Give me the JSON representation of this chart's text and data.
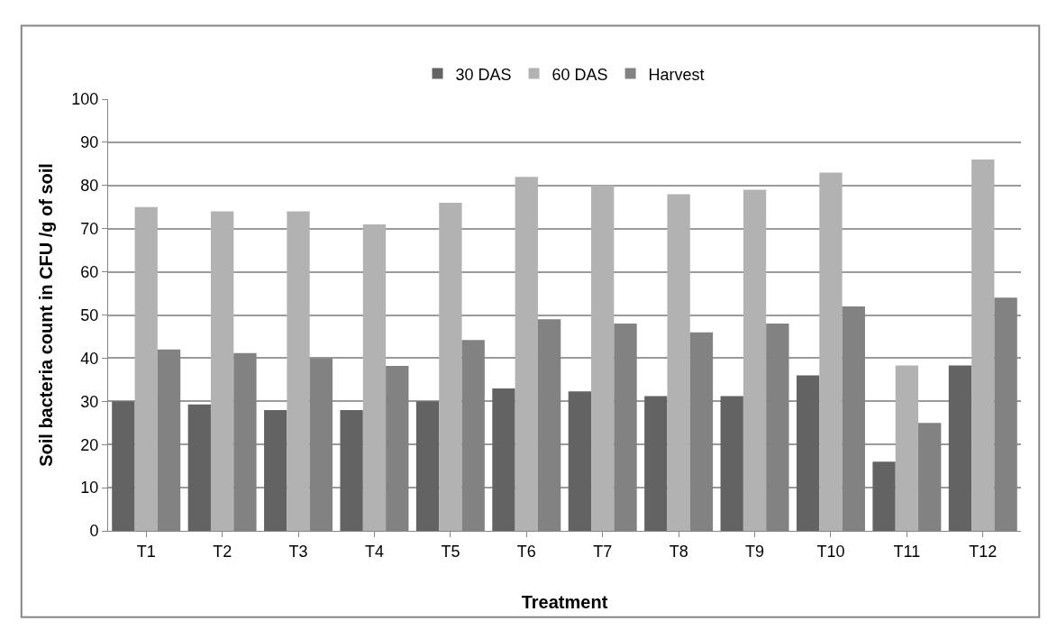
{
  "chart_data": {
    "type": "bar",
    "xlabel": "Treatment",
    "ylabel": "Soil bacteria count in CFU /g of soil",
    "categories": [
      "T1",
      "T2",
      "T3",
      "T4",
      "T5",
      "T6",
      "T7",
      "T8",
      "T9",
      "T10",
      "T11",
      "T12"
    ],
    "series": [
      {
        "name": "30 DAS",
        "color": "#636363",
        "values": [
          30,
          29.3,
          28,
          28,
          30,
          33,
          32.3,
          31.2,
          31.2,
          36,
          16,
          38.3
        ]
      },
      {
        "name": "60 DAS",
        "color": "#b2b2b2",
        "values": [
          75,
          74,
          74,
          71,
          76,
          82,
          80,
          78,
          79,
          83,
          38.3,
          86
        ]
      },
      {
        "name": "Harvest",
        "color": "#828282",
        "values": [
          42,
          41.2,
          40,
          38.2,
          44.2,
          49,
          48,
          46,
          48,
          52,
          25,
          54
        ]
      }
    ],
    "ylim": [
      0,
      100
    ],
    "yticks": [
      0,
      10,
      20,
      30,
      40,
      50,
      60,
      70,
      80,
      90,
      100
    ],
    "grid": "y",
    "legend": "top"
  }
}
